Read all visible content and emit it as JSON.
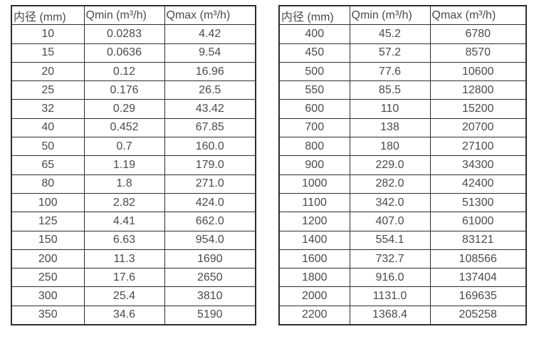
{
  "page": {
    "background_color": "#ffffff",
    "border_color": "#2e2e2e",
    "text_color": "#4a4a4a"
  },
  "tables": [
    {
      "name": "flow-range-table-small-diameters",
      "headers": [
        "内径 (mm)",
        "Qmin (m³/h)",
        "Qmax (m³/h)"
      ],
      "rows": [
        [
          "10",
          "0.0283",
          "4.42"
        ],
        [
          "15",
          "0.0636",
          "9.54"
        ],
        [
          "20",
          "0.12",
          "16.96"
        ],
        [
          "25",
          "0.176",
          "26.5"
        ],
        [
          "32",
          "0.29",
          "43.42"
        ],
        [
          "40",
          "0.452",
          "67.85"
        ],
        [
          "50",
          "0.7",
          "160.0"
        ],
        [
          "65",
          "1.19",
          "179.0"
        ],
        [
          "80",
          "1.8",
          "271.0"
        ],
        [
          "100",
          "2.82",
          "424.0"
        ],
        [
          "125",
          "4.41",
          "662.0"
        ],
        [
          "150",
          "6.63",
          "954.0"
        ],
        [
          "200",
          "11.3",
          "1690"
        ],
        [
          "250",
          "17.6",
          "2650"
        ],
        [
          "300",
          "25.4",
          "3810"
        ],
        [
          "350",
          "34.6",
          "5190"
        ]
      ]
    },
    {
      "name": "flow-range-table-large-diameters",
      "headers": [
        "内径 (mm)",
        "Qmin (m³/h)",
        "Qmax (m³/h)"
      ],
      "rows": [
        [
          "400",
          "45.2",
          "6780"
        ],
        [
          "450",
          "57.2",
          "8570"
        ],
        [
          "500",
          "77.6",
          "10600"
        ],
        [
          "550",
          "85.5",
          "12800"
        ],
        [
          "600",
          "110",
          "15200"
        ],
        [
          "700",
          "138",
          "20700"
        ],
        [
          "800",
          "180",
          "27100"
        ],
        [
          "900",
          "229.0",
          "34300"
        ],
        [
          "1000",
          "282.0",
          "42400"
        ],
        [
          "1100",
          "342.0",
          "51300"
        ],
        [
          "1200",
          "407.0",
          "61000"
        ],
        [
          "1400",
          "554.1",
          "83121"
        ],
        [
          "1600",
          "732.7",
          "108566"
        ],
        [
          "1800",
          "916.0",
          "137404"
        ],
        [
          "2000",
          "1131.0",
          "169635"
        ],
        [
          "2200",
          "1368.4",
          "205258"
        ]
      ]
    }
  ]
}
